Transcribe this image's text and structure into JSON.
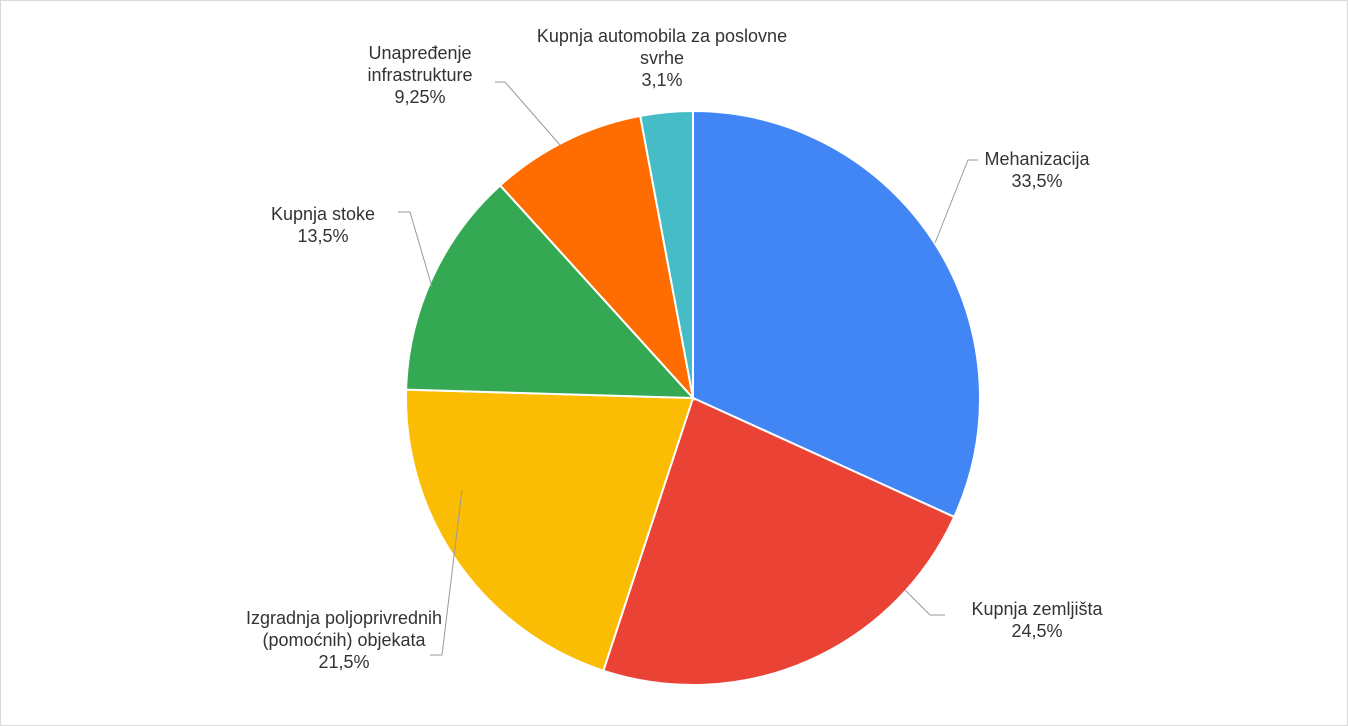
{
  "chart_data": {
    "type": "pie",
    "categories": [
      "Mehanizacija",
      "Kupnja zemljišta",
      "Izgradnja poljoprivrednih (pomoćnih) objekata",
      "Kupnja stoke",
      "Unapređenje infrastrukture",
      "Kupnja automobila za poslovne svrhe"
    ],
    "values": [
      33.5,
      24.5,
      21.5,
      13.5,
      9.25,
      3.1
    ],
    "value_labels": [
      "33,5%",
      "24,5%",
      "21,5%",
      "13,5%",
      "9,25%",
      "3,1%"
    ],
    "colors": [
      "#4285f4",
      "#ea4335",
      "#fbbc04",
      "#34a853",
      "#ff6d01",
      "#46bdc6"
    ]
  }
}
